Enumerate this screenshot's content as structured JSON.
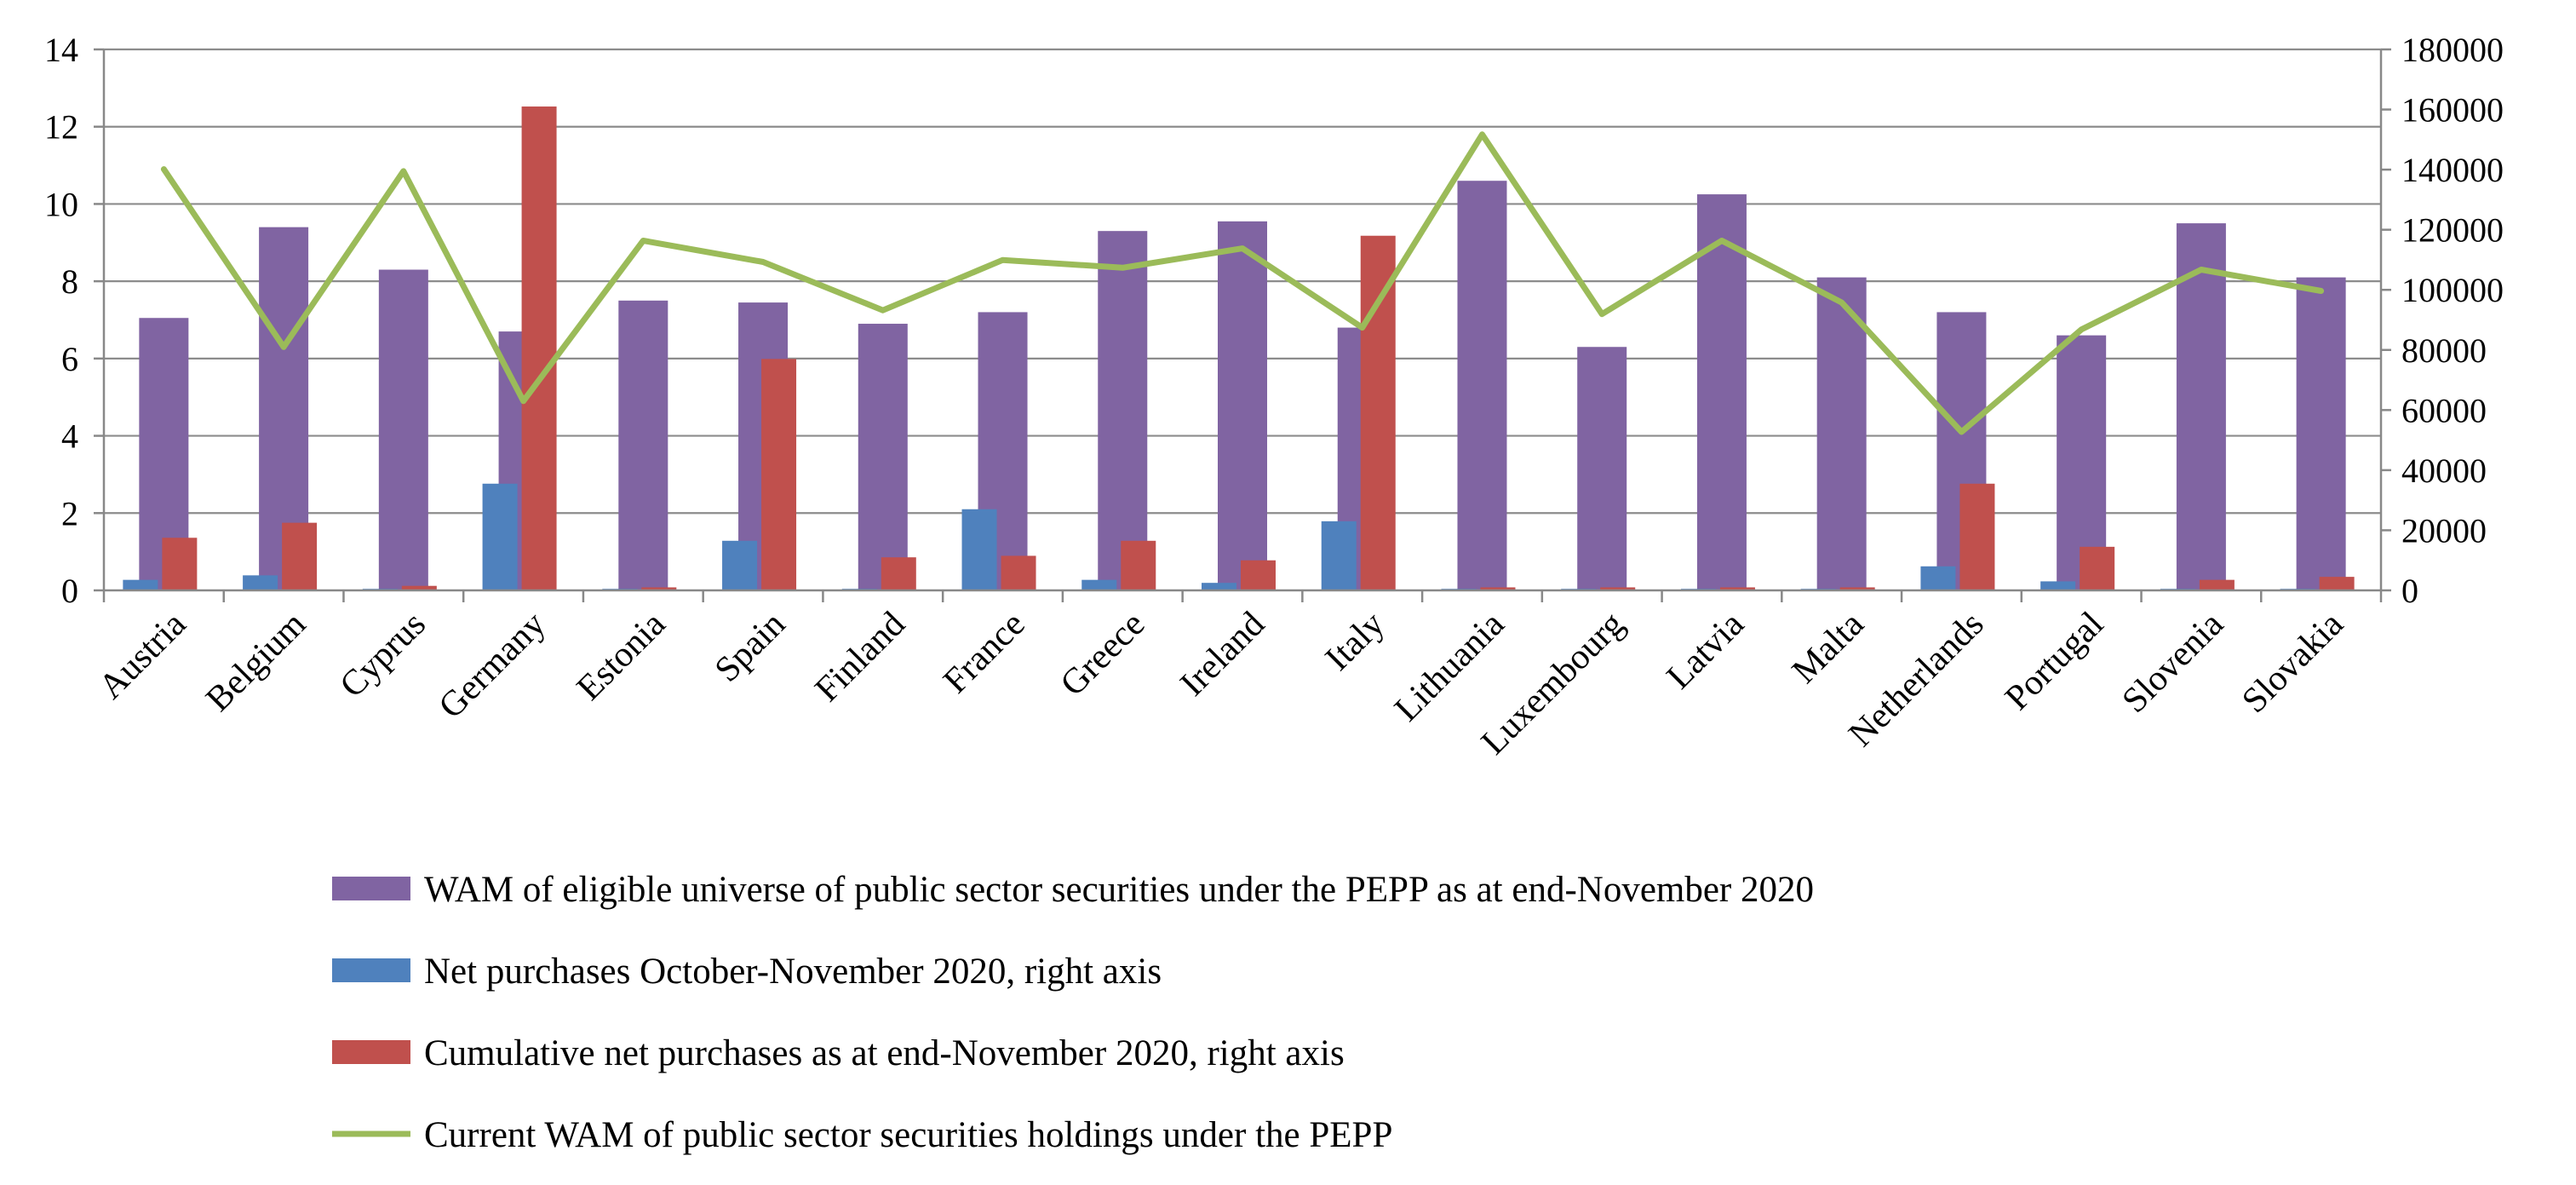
{
  "chart_data": {
    "type": "bar",
    "title": "",
    "categories": [
      "Austria",
      "Belgium",
      "Cyprus",
      "Germany",
      "Estonia",
      "Spain",
      "Finland",
      "France",
      "Greece",
      "Ireland",
      "Italy",
      "Lithuania",
      "Luxembourg",
      "Latvia",
      "Malta",
      "Netherlands",
      "Portugal",
      "Slovenia",
      "Slovakia"
    ],
    "left_axis": {
      "min": 0,
      "max": 14,
      "ticks": [
        "0",
        "2",
        "4",
        "6",
        "8",
        "10",
        "12",
        "14"
      ],
      "tick_values": [
        0,
        2,
        4,
        6,
        8,
        10,
        12,
        14
      ]
    },
    "right_axis": {
      "min": 0,
      "max": 180000,
      "ticks": [
        "0",
        "20000",
        "40000",
        "60000",
        "80000",
        "100000",
        "120000",
        "140000",
        "160000",
        "180000"
      ],
      "tick_values": [
        0,
        20000,
        40000,
        60000,
        80000,
        100000,
        120000,
        140000,
        160000,
        180000
      ]
    },
    "grid": true,
    "legend_position": "bottom",
    "series": [
      {
        "name": "WAM of eligible universe of public sector securities under the PEPP as at end-November 2020",
        "type": "bar",
        "axis": "left",
        "color": "#8064a2",
        "values": [
          7.05,
          9.4,
          8.3,
          6.7,
          7.5,
          7.45,
          6.9,
          7.2,
          9.3,
          9.55,
          6.8,
          10.6,
          6.3,
          10.25,
          8.1,
          7.2,
          6.6,
          9.5,
          8.1
        ]
      },
      {
        "name": "Net purchases October-November 2020, right axis",
        "type": "bar",
        "axis": "right",
        "color": "#4f81bd",
        "values": [
          3500,
          5000,
          500,
          35500,
          500,
          16500,
          500,
          27000,
          3500,
          2500,
          23000,
          500,
          500,
          500,
          500,
          8000,
          3000,
          500,
          500
        ]
      },
      {
        "name": "Cumulative net purchases as at end-November 2020, right axis",
        "type": "bar",
        "axis": "right",
        "color": "#c0504d",
        "values": [
          17500,
          22500,
          1500,
          161000,
          1000,
          77000,
          11000,
          11500,
          16500,
          10000,
          118000,
          1000,
          1000,
          1000,
          1000,
          35500,
          14500,
          3500,
          4500
        ]
      },
      {
        "name": "Current WAM of public sector securities holdings under the PEPP",
        "type": "line",
        "axis": "left",
        "color": "#9bbb59",
        "values": [
          10.9,
          6.3,
          10.85,
          4.9,
          9.05,
          8.5,
          7.25,
          8.55,
          8.35,
          8.85,
          6.8,
          11.8,
          7.15,
          9.05,
          7.45,
          4.1,
          6.75,
          8.3,
          7.75
        ]
      }
    ]
  }
}
